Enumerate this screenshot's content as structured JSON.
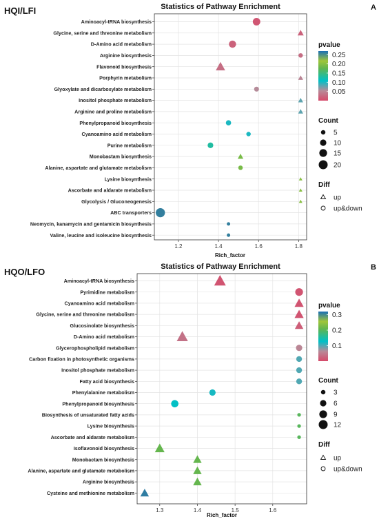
{
  "panel_labels": {
    "A": "A",
    "B": "B"
  },
  "chart_data": [
    {
      "type": "scatter",
      "group_title": "HQI/LFI",
      "title": "Statistics of Pathway Enrichment",
      "xlabel": "Rich_factor",
      "ylabel": "",
      "xlim": [
        1.08,
        1.84
      ],
      "xticks": [
        1.2,
        1.4,
        1.6,
        1.8
      ],
      "pvalue_range": [
        0.0,
        0.27
      ],
      "legend": {
        "pvalue_title": "pvalue",
        "pvalue_ticks": [
          "0.25",
          "0.20",
          "0.15",
          "0.10",
          "0.05"
        ],
        "pvalue_tick_values": [
          0.25,
          0.2,
          0.15,
          0.1,
          0.05
        ],
        "count_title": "Count",
        "count_ticks": [
          "5",
          "10",
          "15",
          "20"
        ],
        "count_values": [
          5,
          10,
          15,
          20
        ],
        "diff_title": "Diff",
        "diff_items": [
          "up",
          "up&down"
        ],
        "placement": "right"
      },
      "points": [
        {
          "pathway": "Aminoacyl-tRNA biosynthesis",
          "x": 1.59,
          "count": 14,
          "pvalue": 0.01,
          "diff": "up&down"
        },
        {
          "pathway": "Glycine, serine and threonine metabolism",
          "x": 1.81,
          "count": 6,
          "pvalue": 0.02,
          "diff": "up"
        },
        {
          "pathway": "D-Amino acid metabolism",
          "x": 1.47,
          "count": 13,
          "pvalue": 0.02,
          "diff": "up&down"
        },
        {
          "pathway": "Arginine biosynthesis",
          "x": 1.81,
          "count": 5,
          "pvalue": 0.03,
          "diff": "up&down"
        },
        {
          "pathway": "Flavonoid biosynthesis",
          "x": 1.41,
          "count": 14,
          "pvalue": 0.03,
          "diff": "up"
        },
        {
          "pathway": "Porphyrin metabolism",
          "x": 1.81,
          "count": 4,
          "pvalue": 0.05,
          "diff": "up"
        },
        {
          "pathway": "Glyoxylate and dicarboxylate metabolism",
          "x": 1.59,
          "count": 6,
          "pvalue": 0.055,
          "diff": "up&down"
        },
        {
          "pathway": "Inositol phosphate metabolism",
          "x": 1.81,
          "count": 4,
          "pvalue": 0.08,
          "diff": "up"
        },
        {
          "pathway": "Arginine and proline metabolism",
          "x": 1.81,
          "count": 4,
          "pvalue": 0.08,
          "diff": "up"
        },
        {
          "pathway": "Phenylpropanoid biosynthesis",
          "x": 1.45,
          "count": 7,
          "pvalue": 0.1,
          "diff": "up&down"
        },
        {
          "pathway": "Cyanoamino acid metabolism",
          "x": 1.55,
          "count": 5,
          "pvalue": 0.1,
          "diff": "up&down"
        },
        {
          "pathway": "Purine metabolism",
          "x": 1.36,
          "count": 8,
          "pvalue": 0.13,
          "diff": "up&down"
        },
        {
          "pathway": "Monobactam biosynthesis",
          "x": 1.51,
          "count": 5,
          "pvalue": 0.19,
          "diff": "up"
        },
        {
          "pathway": "Alanine, aspartate and glutamate metabolism",
          "x": 1.51,
          "count": 5,
          "pvalue": 0.19,
          "diff": "up&down"
        },
        {
          "pathway": "Lysine biosynthesis",
          "x": 1.81,
          "count": 2,
          "pvalue": 0.2,
          "diff": "up"
        },
        {
          "pathway": "Ascorbate and aldarate metabolism",
          "x": 1.81,
          "count": 2,
          "pvalue": 0.2,
          "diff": "up"
        },
        {
          "pathway": "Glycolysis / Gluconeogenesis",
          "x": 1.81,
          "count": 2,
          "pvalue": 0.2,
          "diff": "up"
        },
        {
          "pathway": "ABC transporters",
          "x": 1.11,
          "count": 21,
          "pvalue": 0.26,
          "diff": "up&down"
        },
        {
          "pathway": "Neomycin, kanamycin and gentamicin biosynthesis",
          "x": 1.45,
          "count": 3,
          "pvalue": 0.26,
          "diff": "up&down"
        },
        {
          "pathway": "Valine, leucine and isoleucine biosynthesis",
          "x": 1.45,
          "count": 3,
          "pvalue": 0.26,
          "diff": "up&down"
        }
      ]
    },
    {
      "type": "scatter",
      "group_title": "HQO/LFO",
      "title": "Statistics of Pathway Enrichment",
      "xlabel": "Rich_factor",
      "ylabel": "",
      "xlim": [
        1.24,
        1.69
      ],
      "xticks": [
        1.3,
        1.4,
        1.5,
        1.6
      ],
      "pvalue_range": [
        0.0,
        0.32
      ],
      "legend": {
        "pvalue_title": "pvalue",
        "pvalue_ticks": [
          "0.3",
          "0.2",
          "0.1"
        ],
        "pvalue_tick_values": [
          0.3,
          0.2,
          0.1
        ],
        "count_title": "Count",
        "count_ticks": [
          "3",
          "6",
          "9",
          "12"
        ],
        "count_values": [
          3,
          6,
          9,
          12
        ],
        "diff_title": "Diff",
        "diff_items": [
          "up",
          "up&down"
        ],
        "placement": "right"
      },
      "points": [
        {
          "pathway": "Aminoacyl-tRNA biosynthesis",
          "x": 1.46,
          "count": 13,
          "pvalue": 0.01,
          "diff": "up"
        },
        {
          "pathway": "Pyrimidine metabolism",
          "x": 1.67,
          "count": 9,
          "pvalue": 0.01,
          "diff": "up&down"
        },
        {
          "pathway": "Cyanoamino acid metabolism",
          "x": 1.67,
          "count": 8,
          "pvalue": 0.01,
          "diff": "up"
        },
        {
          "pathway": "Glycine, serine and threonine metabolism",
          "x": 1.67,
          "count": 8,
          "pvalue": 0.01,
          "diff": "up"
        },
        {
          "pathway": "Glucosinolate biosynthesis",
          "x": 1.67,
          "count": 7,
          "pvalue": 0.02,
          "diff": "up"
        },
        {
          "pathway": "D-Amino acid metabolism",
          "x": 1.36,
          "count": 12,
          "pvalue": 0.04,
          "diff": "up"
        },
        {
          "pathway": "Glycerophospholipid metabolism",
          "x": 1.67,
          "count": 6,
          "pvalue": 0.06,
          "diff": "up&down"
        },
        {
          "pathway": "Carbon fixation in photosynthetic organisms",
          "x": 1.67,
          "count": 5,
          "pvalue": 0.1,
          "diff": "up&down"
        },
        {
          "pathway": "Inositol phosphate metabolism",
          "x": 1.67,
          "count": 5,
          "pvalue": 0.1,
          "diff": "up&down"
        },
        {
          "pathway": "Fatty acid biosynthesis",
          "x": 1.67,
          "count": 5,
          "pvalue": 0.1,
          "diff": "up&down"
        },
        {
          "pathway": "Phenylalanine metabolism",
          "x": 1.44,
          "count": 6,
          "pvalue": 0.12,
          "diff": "up&down"
        },
        {
          "pathway": "Phenylpropanoid biosynthesis",
          "x": 1.34,
          "count": 8,
          "pvalue": 0.13,
          "diff": "up&down"
        },
        {
          "pathway": "Biosynthesis of unsaturated fatty acids",
          "x": 1.67,
          "count": 2,
          "pvalue": 0.2,
          "diff": "up&down"
        },
        {
          "pathway": "Lysine biosynthesis",
          "x": 1.67,
          "count": 2,
          "pvalue": 0.2,
          "diff": "up&down"
        },
        {
          "pathway": "Ascorbate and aldarate metabolism",
          "x": 1.67,
          "count": 2,
          "pvalue": 0.2,
          "diff": "up&down"
        },
        {
          "pathway": "Isoflavonoid biosynthesis",
          "x": 1.3,
          "count": 9,
          "pvalue": 0.21,
          "diff": "up"
        },
        {
          "pathway": "Monobactam biosynthesis",
          "x": 1.4,
          "count": 7,
          "pvalue": 0.21,
          "diff": "up"
        },
        {
          "pathway": "Alanine, aspartate and glutamate metabolism",
          "x": 1.4,
          "count": 7,
          "pvalue": 0.21,
          "diff": "up"
        },
        {
          "pathway": "Arginine biosynthesis",
          "x": 1.4,
          "count": 7,
          "pvalue": 0.21,
          "diff": "up"
        },
        {
          "pathway": "Cysteine and methionine metabolism",
          "x": 1.26,
          "count": 7,
          "pvalue": 0.31,
          "diff": "up"
        }
      ]
    }
  ]
}
